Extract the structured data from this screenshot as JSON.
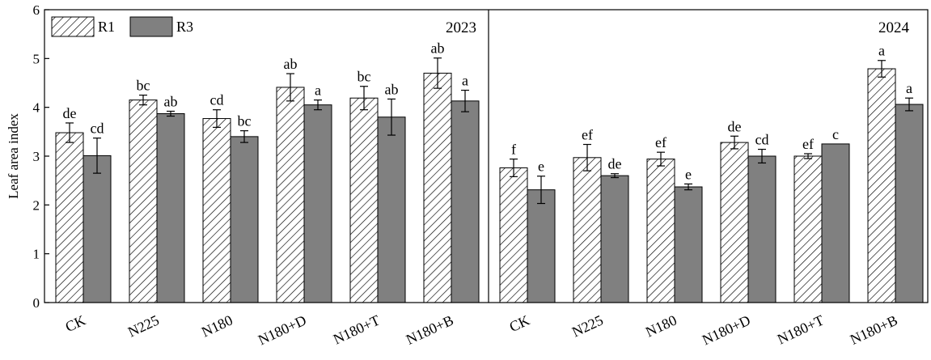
{
  "chart_data": {
    "type": "bar",
    "ylabel": "Leaf area index",
    "xlabel": "",
    "ylim": [
      0,
      6
    ],
    "yticks": [
      "0",
      "1",
      "2",
      "3",
      "4",
      "5",
      "6"
    ],
    "grid": false,
    "legend_position": "top-left",
    "series": [
      {
        "name": "R1",
        "pattern": "hatched",
        "color": "#ffffff"
      },
      {
        "name": "R3",
        "pattern": "solid",
        "color": "#808080"
      }
    ],
    "panels": [
      {
        "year": "2023",
        "categories": [
          "CK",
          "N225",
          "N180",
          "N180+D",
          "N180+T",
          "N180+B"
        ],
        "R1": {
          "values": [
            3.48,
            4.15,
            3.77,
            4.41,
            4.19,
            4.7
          ],
          "errors": [
            0.2,
            0.1,
            0.18,
            0.28,
            0.24,
            0.31
          ],
          "letters": [
            "de",
            "bc",
            "cd",
            "ab",
            "bc",
            "ab"
          ]
        },
        "R3": {
          "values": [
            3.01,
            3.87,
            3.4,
            4.05,
            3.8,
            4.13
          ],
          "errors": [
            0.36,
            0.05,
            0.12,
            0.1,
            0.37,
            0.22
          ],
          "letters": [
            "cd",
            "ab",
            "bc",
            "a",
            "ab",
            "a"
          ]
        }
      },
      {
        "year": "2024",
        "categories": [
          "CK",
          "N225",
          "N180",
          "N180+D",
          "N180+T",
          "N180+B"
        ],
        "R1": {
          "values": [
            2.76,
            2.97,
            2.94,
            3.28,
            3.0,
            4.79
          ],
          "errors": [
            0.18,
            0.27,
            0.14,
            0.13,
            0.05,
            0.17
          ],
          "letters": [
            "f",
            "ef",
            "ef",
            "de",
            "ef",
            "a"
          ]
        },
        "R3": {
          "values": [
            2.31,
            2.6,
            2.37,
            3.0,
            3.25,
            4.06
          ],
          "errors": [
            0.28,
            0.04,
            0.06,
            0.14,
            0.0,
            0.13
          ],
          "letters": [
            "e",
            "de",
            "e",
            "cd",
            "c",
            "a"
          ]
        }
      }
    ]
  }
}
